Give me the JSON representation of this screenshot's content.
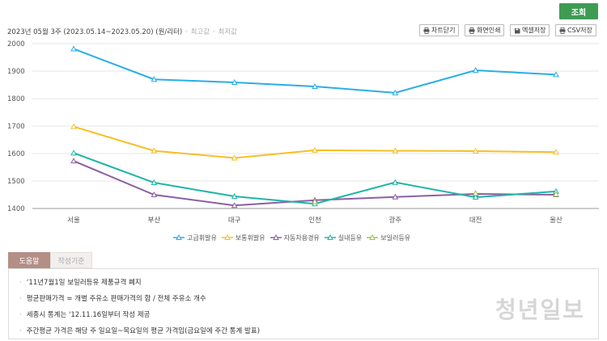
{
  "header": {
    "search_label": "조회",
    "period": "2023년 05월 3주 (2023.05.14~2023.05.20)",
    "unit": "(원/리터)",
    "hint_max": "최고값",
    "hint_min": "최저값",
    "buttons": [
      {
        "label": "차트닫기",
        "icon": "printer-icon"
      },
      {
        "label": "화면인쇄",
        "icon": "printer-icon"
      },
      {
        "label": "엑셀저장",
        "icon": "save-icon"
      },
      {
        "label": "CSV저장",
        "icon": "printer-icon"
      }
    ]
  },
  "chart_data": {
    "type": "line",
    "categories": [
      "서울",
      "부산",
      "대구",
      "인천",
      "광주",
      "대전",
      "울산"
    ],
    "ylim": [
      1400,
      2000
    ],
    "yticks": [
      1400,
      1500,
      1600,
      1700,
      1800,
      1900,
      2000
    ],
    "grid": true,
    "legend_position": "bottom",
    "series": [
      {
        "name": "고급휘발유",
        "color": "#29aee6",
        "values": [
          1981,
          1870,
          1859,
          1844,
          1821,
          1903,
          1887
        ]
      },
      {
        "name": "보통휘발유",
        "color": "#f7bf25",
        "values": [
          1698,
          1610,
          1584,
          1612,
          1610,
          1609,
          1605
        ]
      },
      {
        "name": "자동차용경유",
        "color": "#8c5fa3",
        "values": [
          1573,
          1450,
          1411,
          1430,
          1442,
          1453,
          1450
        ]
      },
      {
        "name": "실내등유",
        "color": "#1fb5a5",
        "values": [
          1602,
          1494,
          1444,
          1417,
          1495,
          1441,
          1462
        ]
      },
      {
        "name": "보일러등유",
        "color": "#9bc54a",
        "values": [
          null,
          null,
          null,
          1425,
          null,
          1455,
          1452
        ]
      }
    ]
  },
  "tabs": [
    {
      "label": "도움말",
      "active": true
    },
    {
      "label": "작성기준",
      "active": false
    }
  ],
  "notes": [
    "‘11년7월1일 보일러등유 제품규격 폐지",
    "평균판매가격 = 개별 주유소 판매가격의 합 / 전체 주유소 개수",
    "세종시 통계는 '12.11.16일부터 작성 제공",
    "주간평균 가격은 해당 주 일요일~목요일의 평균 가격임(금요일에 주간 통계 발표)"
  ],
  "watermark": "청년일보"
}
